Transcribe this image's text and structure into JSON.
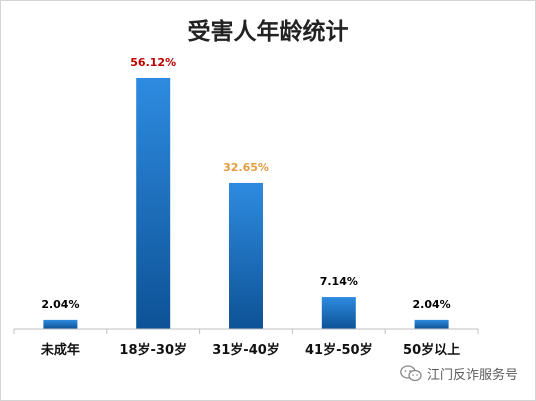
{
  "chart_data": {
    "type": "bar",
    "title": "受害人年龄统计",
    "categories": [
      "未成年",
      "18岁-30岁",
      "31岁-40岁",
      "41岁-50岁",
      "50岁以上"
    ],
    "values": [
      2.04,
      56.12,
      32.65,
      7.14,
      2.04
    ],
    "value_labels": [
      "2.04%",
      "56.12%",
      "32.65%",
      "7.14%",
      "2.04%"
    ],
    "label_colors": [
      "#000000",
      "#c00000",
      "#e59b3f",
      "#000000",
      "#000000"
    ],
    "bar_colors": {
      "top": "#2e8be0",
      "bottom": "#0d5296"
    },
    "xlabel": "",
    "ylabel": "",
    "ylim": [
      0,
      60
    ],
    "grid": false,
    "legend": "none"
  },
  "watermark": {
    "text": "江门反诈服务号",
    "icon": "wechat-icon"
  }
}
